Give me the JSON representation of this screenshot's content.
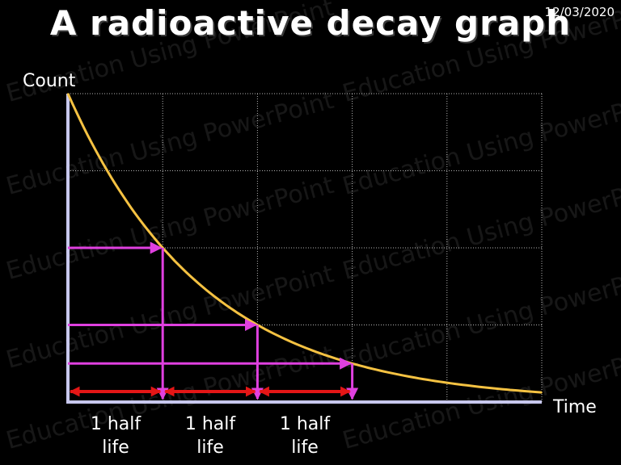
{
  "slide": {
    "title": "A radioactive decay graph",
    "date": "12/03/2020",
    "watermark": "Education Using PowerPoint"
  },
  "colors": {
    "background": "#000000",
    "curve": "#f5c242",
    "axes": "#c8c8ee",
    "half_life_markers": "#e040e0",
    "interval_arrows": "#e41616",
    "grid": "#ffffff"
  },
  "chart_data": {
    "type": "line",
    "xlabel": "Time",
    "ylabel": "Count",
    "x_unit": "half-lives",
    "xlim": [
      0,
      5
    ],
    "ylim": [
      0,
      1
    ],
    "grid": true,
    "series": [
      {
        "x": [
          0,
          0.25,
          0.5,
          0.75,
          1,
          1.25,
          1.5,
          1.75,
          2,
          2.25,
          2.5,
          2.75,
          3,
          3.25,
          3.5,
          3.75,
          4,
          4.25,
          4.5,
          4.75,
          5
        ],
        "y": [
          1,
          0.841,
          0.707,
          0.595,
          0.5,
          0.42,
          0.354,
          0.297,
          0.25,
          0.21,
          0.177,
          0.149,
          0.125,
          0.105,
          0.088,
          0.074,
          0.063,
          0.053,
          0.044,
          0.037,
          0.031
        ]
      }
    ],
    "half_life_points": [
      {
        "x": 1,
        "y": 0.5
      },
      {
        "x": 2,
        "y": 0.25
      },
      {
        "x": 3,
        "y": 0.125
      }
    ],
    "interval_labels": [
      "1 half life",
      "1 half life",
      "1 half life"
    ]
  },
  "labels": {
    "halflife_1_line1": "1 half",
    "halflife_1_line2": "life",
    "halflife_2_line1": "1 half",
    "halflife_2_line2": "life",
    "halflife_3_line1": "1 half",
    "halflife_3_line2": "life"
  }
}
